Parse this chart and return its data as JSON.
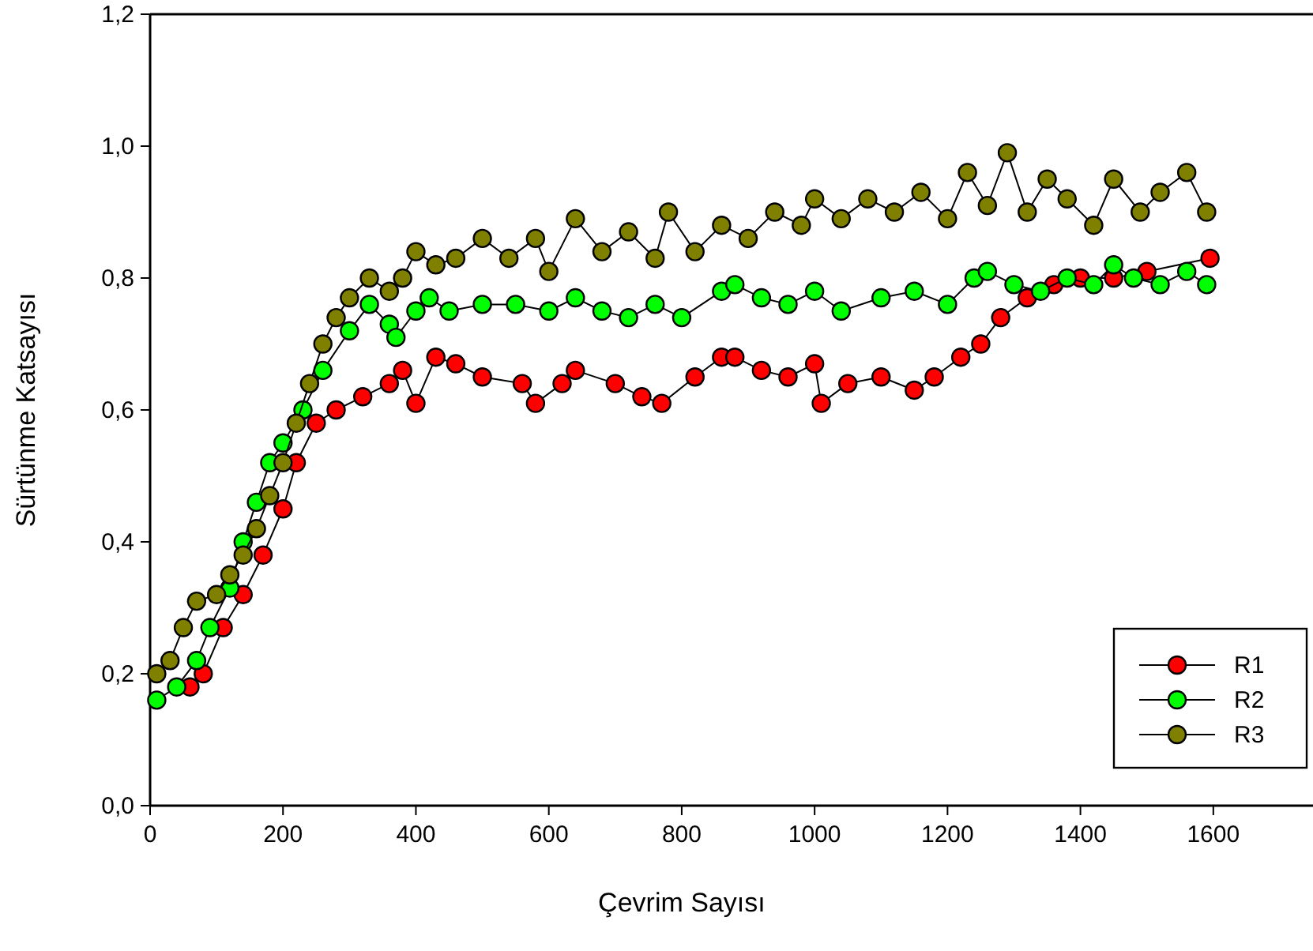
{
  "chart_data": {
    "type": "line",
    "xlabel": "Çevrim Sayısı",
    "ylabel": "Sürtünme Katsayısı",
    "xlim": [
      0,
      1750
    ],
    "ylim": [
      0,
      1.2
    ],
    "xticks": [
      0,
      200,
      400,
      600,
      800,
      1000,
      1200,
      1400,
      1600
    ],
    "yticks": [
      {
        "value": 0,
        "label": "0,0"
      },
      {
        "value": 0.2,
        "label": "0,2"
      },
      {
        "value": 0.4,
        "label": "0,4"
      },
      {
        "value": 0.6,
        "label": "0,6"
      },
      {
        "value": 0.8,
        "label": "0,8"
      },
      {
        "value": 1,
        "label": "1,0"
      },
      {
        "value": 1.2,
        "label": "1,2"
      }
    ],
    "grid": false,
    "legend": "bottom right",
    "marker": "circle",
    "line_style": "solid",
    "series": [
      {
        "name": "R1",
        "color": "#ff0000",
        "x": [
          60,
          80,
          110,
          140,
          170,
          200,
          220,
          250,
          280,
          320,
          360,
          380,
          400,
          430,
          460,
          500,
          560,
          580,
          620,
          640,
          700,
          740,
          770,
          820,
          860,
          880,
          920,
          960,
          1000,
          1010,
          1050,
          1100,
          1150,
          1180,
          1220,
          1250,
          1280,
          1320,
          1360,
          1400,
          1450,
          1500,
          1595
        ],
        "values": [
          0.18,
          0.2,
          0.27,
          0.32,
          0.38,
          0.45,
          0.52,
          0.58,
          0.6,
          0.62,
          0.64,
          0.66,
          0.61,
          0.68,
          0.67,
          0.65,
          0.64,
          0.61,
          0.64,
          0.66,
          0.64,
          0.62,
          0.61,
          0.65,
          0.68,
          0.68,
          0.66,
          0.65,
          0.67,
          0.61,
          0.64,
          0.65,
          0.63,
          0.65,
          0.68,
          0.7,
          0.74,
          0.77,
          0.79,
          0.8,
          0.8,
          0.81,
          0.83
        ]
      },
      {
        "name": "R2",
        "color": "#00ff00",
        "x": [
          10,
          40,
          70,
          90,
          120,
          140,
          160,
          180,
          200,
          230,
          260,
          300,
          330,
          360,
          370,
          400,
          420,
          450,
          500,
          550,
          600,
          640,
          680,
          720,
          760,
          800,
          860,
          880,
          920,
          960,
          1000,
          1040,
          1100,
          1150,
          1200,
          1240,
          1260,
          1300,
          1340,
          1380,
          1420,
          1450,
          1480,
          1520,
          1560,
          1590
        ],
        "values": [
          0.16,
          0.18,
          0.22,
          0.27,
          0.33,
          0.4,
          0.46,
          0.52,
          0.55,
          0.6,
          0.66,
          0.72,
          0.76,
          0.73,
          0.71,
          0.75,
          0.77,
          0.75,
          0.76,
          0.76,
          0.75,
          0.77,
          0.75,
          0.74,
          0.76,
          0.74,
          0.78,
          0.79,
          0.77,
          0.76,
          0.78,
          0.75,
          0.77,
          0.78,
          0.76,
          0.8,
          0.81,
          0.79,
          0.78,
          0.8,
          0.79,
          0.82,
          0.8,
          0.79,
          0.81,
          0.79
        ]
      },
      {
        "name": "R3",
        "color": "#808000",
        "x": [
          10,
          30,
          50,
          70,
          100,
          120,
          140,
          160,
          180,
          200,
          220,
          240,
          260,
          280,
          300,
          330,
          360,
          380,
          400,
          430,
          460,
          500,
          540,
          580,
          600,
          640,
          680,
          720,
          760,
          780,
          820,
          860,
          900,
          940,
          980,
          1000,
          1040,
          1080,
          1120,
          1160,
          1200,
          1230,
          1260,
          1290,
          1320,
          1350,
          1380,
          1420,
          1450,
          1490,
          1520,
          1560,
          1590
        ],
        "values": [
          0.2,
          0.22,
          0.27,
          0.31,
          0.32,
          0.35,
          0.38,
          0.42,
          0.47,
          0.52,
          0.58,
          0.64,
          0.7,
          0.74,
          0.77,
          0.8,
          0.78,
          0.8,
          0.84,
          0.82,
          0.83,
          0.86,
          0.83,
          0.86,
          0.81,
          0.89,
          0.84,
          0.87,
          0.83,
          0.9,
          0.84,
          0.88,
          0.86,
          0.9,
          0.88,
          0.92,
          0.89,
          0.92,
          0.9,
          0.93,
          0.89,
          0.96,
          0.91,
          0.99,
          0.9,
          0.95,
          0.92,
          0.88,
          0.95,
          0.9,
          0.93,
          0.96,
          0.9
        ]
      }
    ]
  }
}
